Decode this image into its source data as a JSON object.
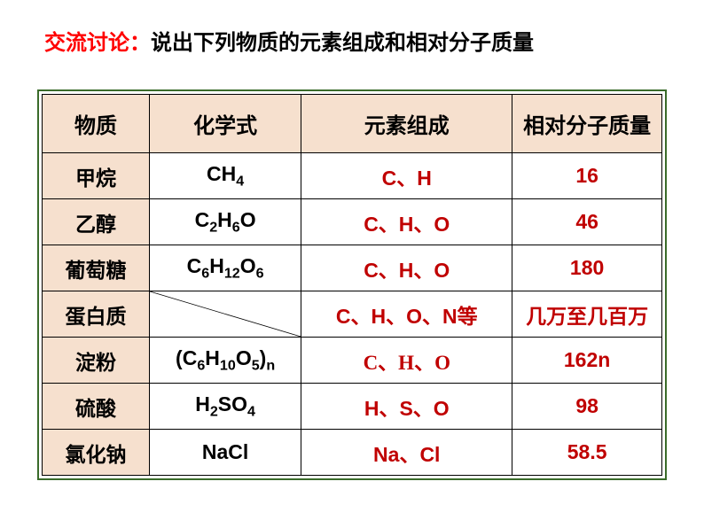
{
  "title": {
    "highlight": "交流讨论：",
    "normal": "说出下列物质的元素组成和相对分子质量"
  },
  "headers": {
    "substance": "物质",
    "formula": "化学式",
    "elements": "元素组成",
    "mass": "相对分子质量"
  },
  "rows": [
    {
      "name": "甲烷",
      "formula_html": "CH<sub>4</sub>",
      "elements": "C、H",
      "mass": "16",
      "serif": false
    },
    {
      "name": "乙醇",
      "formula_html": "C<sub>2</sub>H<sub>6</sub>O",
      "elements": "C、H、O",
      "mass": "46",
      "serif": false
    },
    {
      "name": "葡萄糖",
      "formula_html": "C<sub>6</sub>H<sub>12</sub>O<sub>6</sub>",
      "elements": "C、H、O",
      "mass": "180",
      "serif": false
    },
    {
      "name": "蛋白质",
      "formula_html": "",
      "elements": "C、H、O、N等",
      "mass": "几万至几百万",
      "diag": true,
      "serif": false
    },
    {
      "name": "淀粉",
      "formula_html": "(C<sub>6</sub>H<sub>10</sub>O<sub>5</sub>)<sub>n</sub>",
      "elements": "C、H、O",
      "mass": "162n",
      "serif": true
    },
    {
      "name": "硫酸",
      "formula_html": "H<sub>2</sub>SO<sub>4</sub>",
      "elements": "H、S、O",
      "mass": "98",
      "serif": false
    },
    {
      "name": "氯化钠",
      "formula_html": "NaCl",
      "elements": "Na、Cl",
      "mass": "58.5",
      "serif": false
    }
  ],
  "colors": {
    "header_bg": "#f6e0ce",
    "accent_text": "#c00000",
    "title_red": "#ff0000",
    "border_outer": "#3a6b2a",
    "border_inner": "#000000"
  }
}
